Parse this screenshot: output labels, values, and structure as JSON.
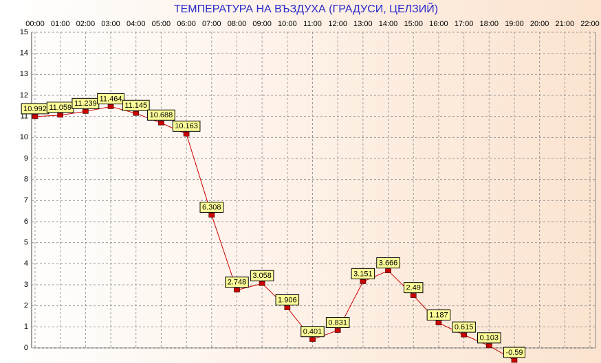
{
  "chart_data": {
    "type": "line",
    "title": "ТЕМПЕРАТУРА НА ВЪЗДУХА  (ГРАДУСИ, ЦЕЛЗИЙ)",
    "categories": [
      "00:00",
      "01:00",
      "02:00",
      "03:00",
      "04:00",
      "05:00",
      "06:00",
      "07:00",
      "08:00",
      "09:00",
      "10:00",
      "11:00",
      "12:00",
      "13:00",
      "14:00",
      "15:00",
      "16:00",
      "17:00",
      "18:00",
      "19:00",
      "20:00",
      "21:00",
      "22:00"
    ],
    "series": [
      {
        "name": "Temperature",
        "color": "#cc0000",
        "values": [
          10.992,
          11.059,
          11.239,
          11.464,
          11.145,
          10.688,
          10.163,
          6.308,
          2.748,
          3.058,
          1.906,
          0.401,
          0.831,
          3.151,
          3.666,
          2.49,
          1.187,
          0.615,
          0.103,
          -0.59,
          null,
          null,
          null
        ]
      }
    ],
    "ylim": [
      0,
      15
    ],
    "yticks": [
      0,
      1,
      2,
      3,
      4,
      5,
      6,
      7,
      8,
      9,
      10,
      11,
      12,
      13,
      14,
      15
    ],
    "grid": true
  }
}
